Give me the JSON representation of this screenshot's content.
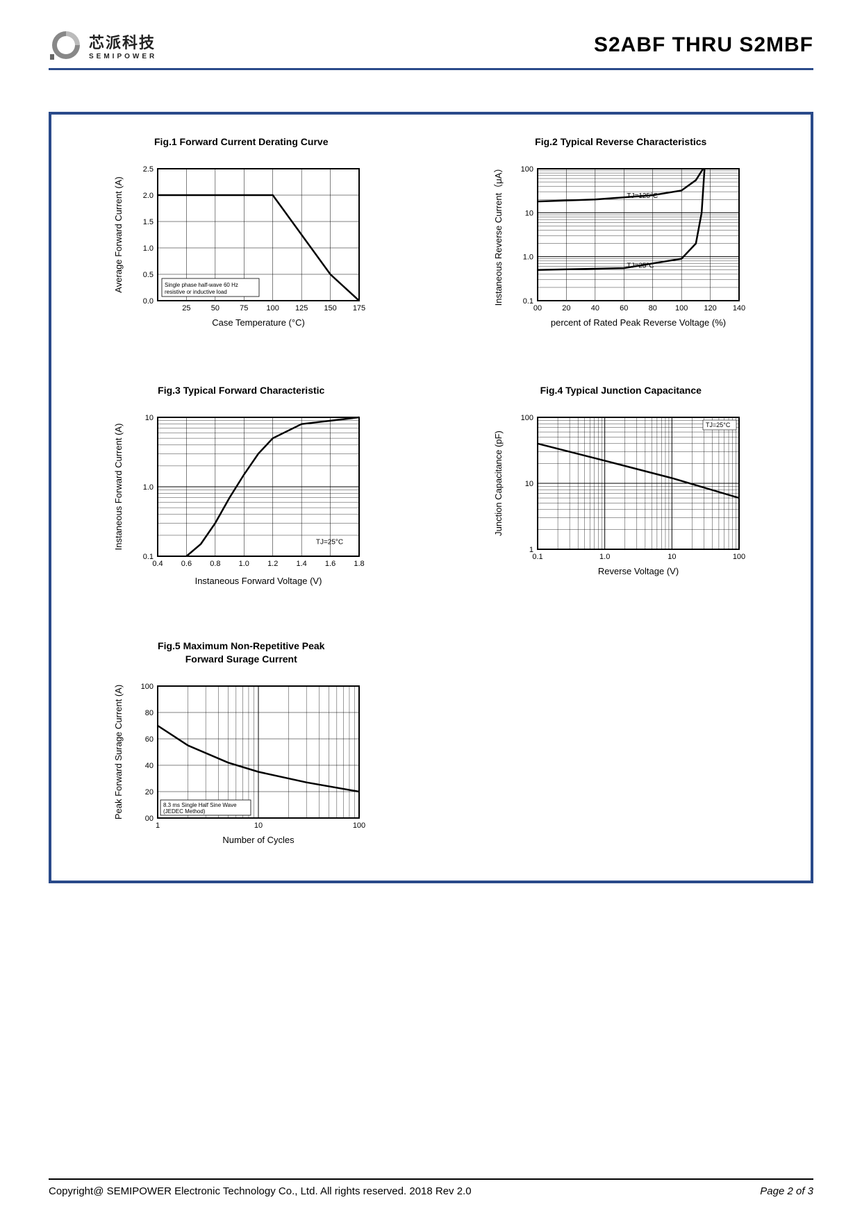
{
  "header": {
    "logo_cn": "芯派科技",
    "logo_en": "SEMIPOWER",
    "part_title": "S2ABF THRU S2MBF"
  },
  "footer": {
    "copyright": "Copyright@ SEMIPOWER Electronic Technology Co., Ltd.  All rights reserved.  2018  Rev  2.0",
    "page": "Page 2 of 3"
  },
  "fig1": {
    "title": "Fig.1  Forward Current Derating Curve",
    "xlabel": "Case Temperature (°C)",
    "ylabel": "Average Forward Current (A)",
    "xticks": [
      25,
      50,
      75,
      100,
      125,
      150,
      175
    ],
    "yticks": [
      "0.0",
      "0.5",
      "1.0",
      "1.5",
      "2.0",
      "2.5"
    ],
    "xlim": [
      0,
      175
    ],
    "ylim": [
      0,
      2.5
    ],
    "note": "Single phase half-wave 60 Hz\nresistive or inductive load",
    "line_color": "#000000",
    "grid_color": "#000000",
    "data": [
      [
        0,
        2.0
      ],
      [
        100,
        2.0
      ],
      [
        150,
        0.5
      ],
      [
        175,
        0.0
      ]
    ]
  },
  "fig2": {
    "title": "Fig.2  Typical Reverse Characteristics",
    "xlabel": "percent of Rated  Peak Reverse Voltage (%)",
    "ylabel": "Instaneous Reverse Current（μA）",
    "xticks": [
      "00",
      20,
      40,
      60,
      80,
      100,
      120,
      140
    ],
    "yticks": [
      "0.1",
      "1.0",
      "10",
      "100"
    ],
    "xlim": [
      0,
      140
    ],
    "yscale": "log",
    "labels": [
      "TJ=125°C",
      "TJ=25°C"
    ],
    "line_color": "#000000",
    "series_125": [
      [
        0,
        18
      ],
      [
        40,
        20
      ],
      [
        80,
        25
      ],
      [
        100,
        32
      ],
      [
        110,
        55
      ],
      [
        115,
        100
      ]
    ],
    "series_25": [
      [
        0,
        0.5
      ],
      [
        60,
        0.55
      ],
      [
        100,
        0.9
      ],
      [
        110,
        2
      ],
      [
        114,
        10
      ],
      [
        116,
        100
      ]
    ]
  },
  "fig3": {
    "title": "Fig.3  Typical Forward Characteristic",
    "xlabel": "Instaneous Forward Voltage (V)",
    "ylabel": "Instaneous Forward Current  (A)",
    "xticks": [
      "0.4",
      "0.6",
      "0.8",
      "1.0",
      "1.2",
      "1.4",
      "1.6",
      "1.8"
    ],
    "yticks": [
      "0.1",
      "1.0",
      "10"
    ],
    "xlim": [
      0.4,
      1.8
    ],
    "yscale": "log",
    "label": "TJ=25°C",
    "line_color": "#000000",
    "data": [
      [
        0.6,
        0.1
      ],
      [
        0.7,
        0.15
      ],
      [
        0.8,
        0.3
      ],
      [
        0.9,
        0.7
      ],
      [
        1.0,
        1.5
      ],
      [
        1.1,
        3
      ],
      [
        1.2,
        5
      ],
      [
        1.4,
        8
      ],
      [
        1.8,
        10
      ]
    ]
  },
  "fig4": {
    "title": "Fig.4  Typical Junction Capacitance",
    "xlabel": "Reverse  Voltage (V)",
    "ylabel": "Junction Capacitance (pF)",
    "xticks": [
      "0.1",
      "1.0",
      "10",
      "100"
    ],
    "yticks": [
      "1",
      "10",
      "100"
    ],
    "xscale": "log",
    "yscale": "log",
    "label": "TJ=25°C",
    "line_color": "#000000",
    "data": [
      [
        0.1,
        40
      ],
      [
        1,
        22
      ],
      [
        10,
        12
      ],
      [
        100,
        6
      ]
    ]
  },
  "fig5": {
    "title": "Fig.5  Maximum Non-Repetitive Peak\nForward Surage Current",
    "xlabel": "Number of Cycles",
    "ylabel": "Peak Forward Surage Current (A)",
    "xticks": [
      "1",
      "10",
      "100"
    ],
    "yticks": [
      "00",
      "20",
      "40",
      "60",
      "80",
      "100"
    ],
    "xscale": "log",
    "ylim": [
      0,
      100
    ],
    "note": "8.3 ms Single Half Sine Wave\n(JEDEC Method)",
    "line_color": "#000000",
    "data": [
      [
        1,
        70
      ],
      [
        2,
        55
      ],
      [
        5,
        42
      ],
      [
        10,
        35
      ],
      [
        30,
        27
      ],
      [
        100,
        20
      ]
    ]
  },
  "colors": {
    "frame": "#2a4a8a",
    "axis": "#000000",
    "grid": "#000000",
    "text": "#000000"
  }
}
